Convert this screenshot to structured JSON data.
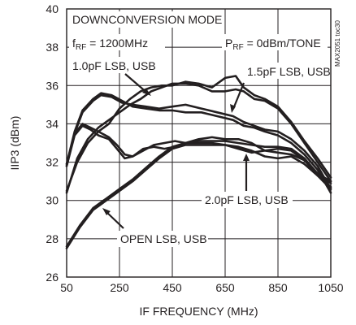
{
  "chart_data": {
    "type": "line",
    "title": "DOWNCONVERSION MODE",
    "part_code": "MAX2051 toc30",
    "xlabel": "IF FREQUENCY (MHz)",
    "ylabel": "IIP3 (dBm)",
    "xlim": [
      50,
      1050
    ],
    "ylim": [
      26,
      40
    ],
    "x_ticks": [
      50,
      250,
      450,
      650,
      850,
      1050
    ],
    "y_ticks": [
      26,
      28,
      30,
      32,
      34,
      36,
      38,
      40
    ],
    "grid": true,
    "conditions": {
      "frf": {
        "main": "f",
        "sub": "RF",
        "value": " = 1200MHz"
      },
      "prf": {
        "main": "P",
        "sub": "RF",
        "value": " = 0dBm/TONE"
      }
    },
    "annotations": {
      "c10": "1.0pF LSB, USB",
      "c15": "1.5pF LSB, USB",
      "c20": "2.0pF LSB, USB",
      "open": "OPEN LSB, USB"
    },
    "series": [
      {
        "group": "1.0pF",
        "x": [
          50,
          80,
          110,
          150,
          180,
          220,
          260,
          300,
          350,
          400,
          450,
          500,
          560,
          620,
          680,
          720,
          760,
          800,
          850,
          900,
          950,
          1000,
          1050
        ],
        "y": [
          31.8,
          33.5,
          34.6,
          35.2,
          35.5,
          35.4,
          35.1,
          35.0,
          34.9,
          34.8,
          34.9,
          35.0,
          34.8,
          34.6,
          34.4,
          34.1,
          33.9,
          33.7,
          33.6,
          33.2,
          32.6,
          31.8,
          30.6
        ]
      },
      {
        "group": "1.0pF",
        "x": [
          50,
          80,
          110,
          150,
          180,
          220,
          260,
          300,
          350,
          400,
          450,
          500,
          560,
          620,
          680,
          720,
          760,
          800,
          850,
          900,
          950,
          1000,
          1050
        ],
        "y": [
          31.9,
          33.6,
          34.7,
          35.3,
          35.6,
          35.5,
          35.2,
          34.9,
          34.8,
          34.7,
          34.7,
          34.6,
          34.6,
          34.4,
          34.2,
          33.9,
          33.8,
          33.6,
          33.4,
          33.0,
          32.4,
          31.6,
          30.4
        ]
      },
      {
        "group": "1.5pF",
        "x": [
          50,
          90,
          130,
          170,
          210,
          250,
          290,
          330,
          370,
          410,
          450,
          500,
          550,
          600,
          650,
          690,
          720,
          760,
          800,
          850,
          900,
          950,
          1000,
          1050
        ],
        "y": [
          30.4,
          32.2,
          33.2,
          33.8,
          34.2,
          34.6,
          35.0,
          35.3,
          35.7,
          35.9,
          36.1,
          36.1,
          36.0,
          35.7,
          35.7,
          35.8,
          35.7,
          35.3,
          35.2,
          34.8,
          34.0,
          33.0,
          32.0,
          31.0
        ]
      },
      {
        "group": "1.5pF",
        "x": [
          50,
          90,
          130,
          170,
          210,
          250,
          290,
          330,
          370,
          410,
          450,
          500,
          550,
          600,
          650,
          690,
          720,
          760,
          800,
          850,
          900,
          950,
          1000,
          1050
        ],
        "y": [
          30.5,
          32.0,
          33.0,
          33.6,
          34.0,
          34.8,
          35.3,
          35.7,
          35.9,
          36.0,
          36.0,
          36.2,
          36.1,
          35.9,
          36.4,
          36.5,
          35.9,
          35.5,
          35.3,
          34.9,
          34.1,
          33.1,
          32.2,
          31.2
        ]
      },
      {
        "group": "2.0pF",
        "x": [
          50,
          80,
          110,
          140,
          170,
          210,
          240,
          270,
          300,
          340,
          380,
          420,
          460,
          500,
          550,
          600,
          650,
          700,
          750,
          800,
          850,
          900,
          950,
          1000,
          1050
        ],
        "y": [
          31.8,
          33.4,
          33.9,
          33.7,
          33.4,
          33.2,
          32.7,
          32.2,
          32.3,
          32.7,
          32.8,
          32.7,
          32.8,
          33.0,
          33.0,
          33.0,
          32.9,
          32.8,
          32.6,
          32.3,
          32.2,
          32.3,
          31.9,
          31.3,
          30.9
        ]
      },
      {
        "group": "2.0pF",
        "x": [
          50,
          80,
          110,
          140,
          170,
          210,
          240,
          270,
          300,
          340,
          380,
          420,
          460,
          500,
          550,
          600,
          650,
          700,
          750,
          800,
          850,
          900,
          950,
          1000,
          1050
        ],
        "y": [
          31.9,
          33.5,
          34.0,
          33.8,
          33.6,
          33.3,
          32.9,
          32.4,
          32.3,
          32.6,
          32.9,
          33.0,
          33.1,
          33.0,
          33.2,
          33.3,
          33.2,
          33.2,
          33.0,
          32.6,
          32.5,
          32.4,
          32.1,
          31.4,
          31.0
        ]
      },
      {
        "group": "OPEN",
        "x": [
          50,
          100,
          150,
          200,
          250,
          300,
          350,
          400,
          450,
          500,
          550,
          600,
          650,
          700,
          750,
          800,
          850,
          900,
          950,
          1000,
          1050
        ],
        "y": [
          27.5,
          28.6,
          29.5,
          30.0,
          30.5,
          31.0,
          31.6,
          32.2,
          32.7,
          32.9,
          32.9,
          32.9,
          32.9,
          32.7,
          32.5,
          32.6,
          32.7,
          32.6,
          32.1,
          31.3,
          30.6
        ]
      },
      {
        "group": "OPEN",
        "x": [
          50,
          100,
          150,
          200,
          250,
          300,
          350,
          400,
          450,
          500,
          550,
          600,
          650,
          700,
          750,
          800,
          850,
          900,
          950,
          1000,
          1050
        ],
        "y": [
          27.6,
          28.7,
          29.6,
          30.1,
          30.6,
          31.1,
          31.7,
          32.3,
          32.8,
          33.0,
          33.1,
          33.1,
          33.1,
          33.0,
          32.9,
          32.8,
          32.8,
          32.7,
          32.2,
          31.4,
          30.7
        ]
      }
    ]
  }
}
